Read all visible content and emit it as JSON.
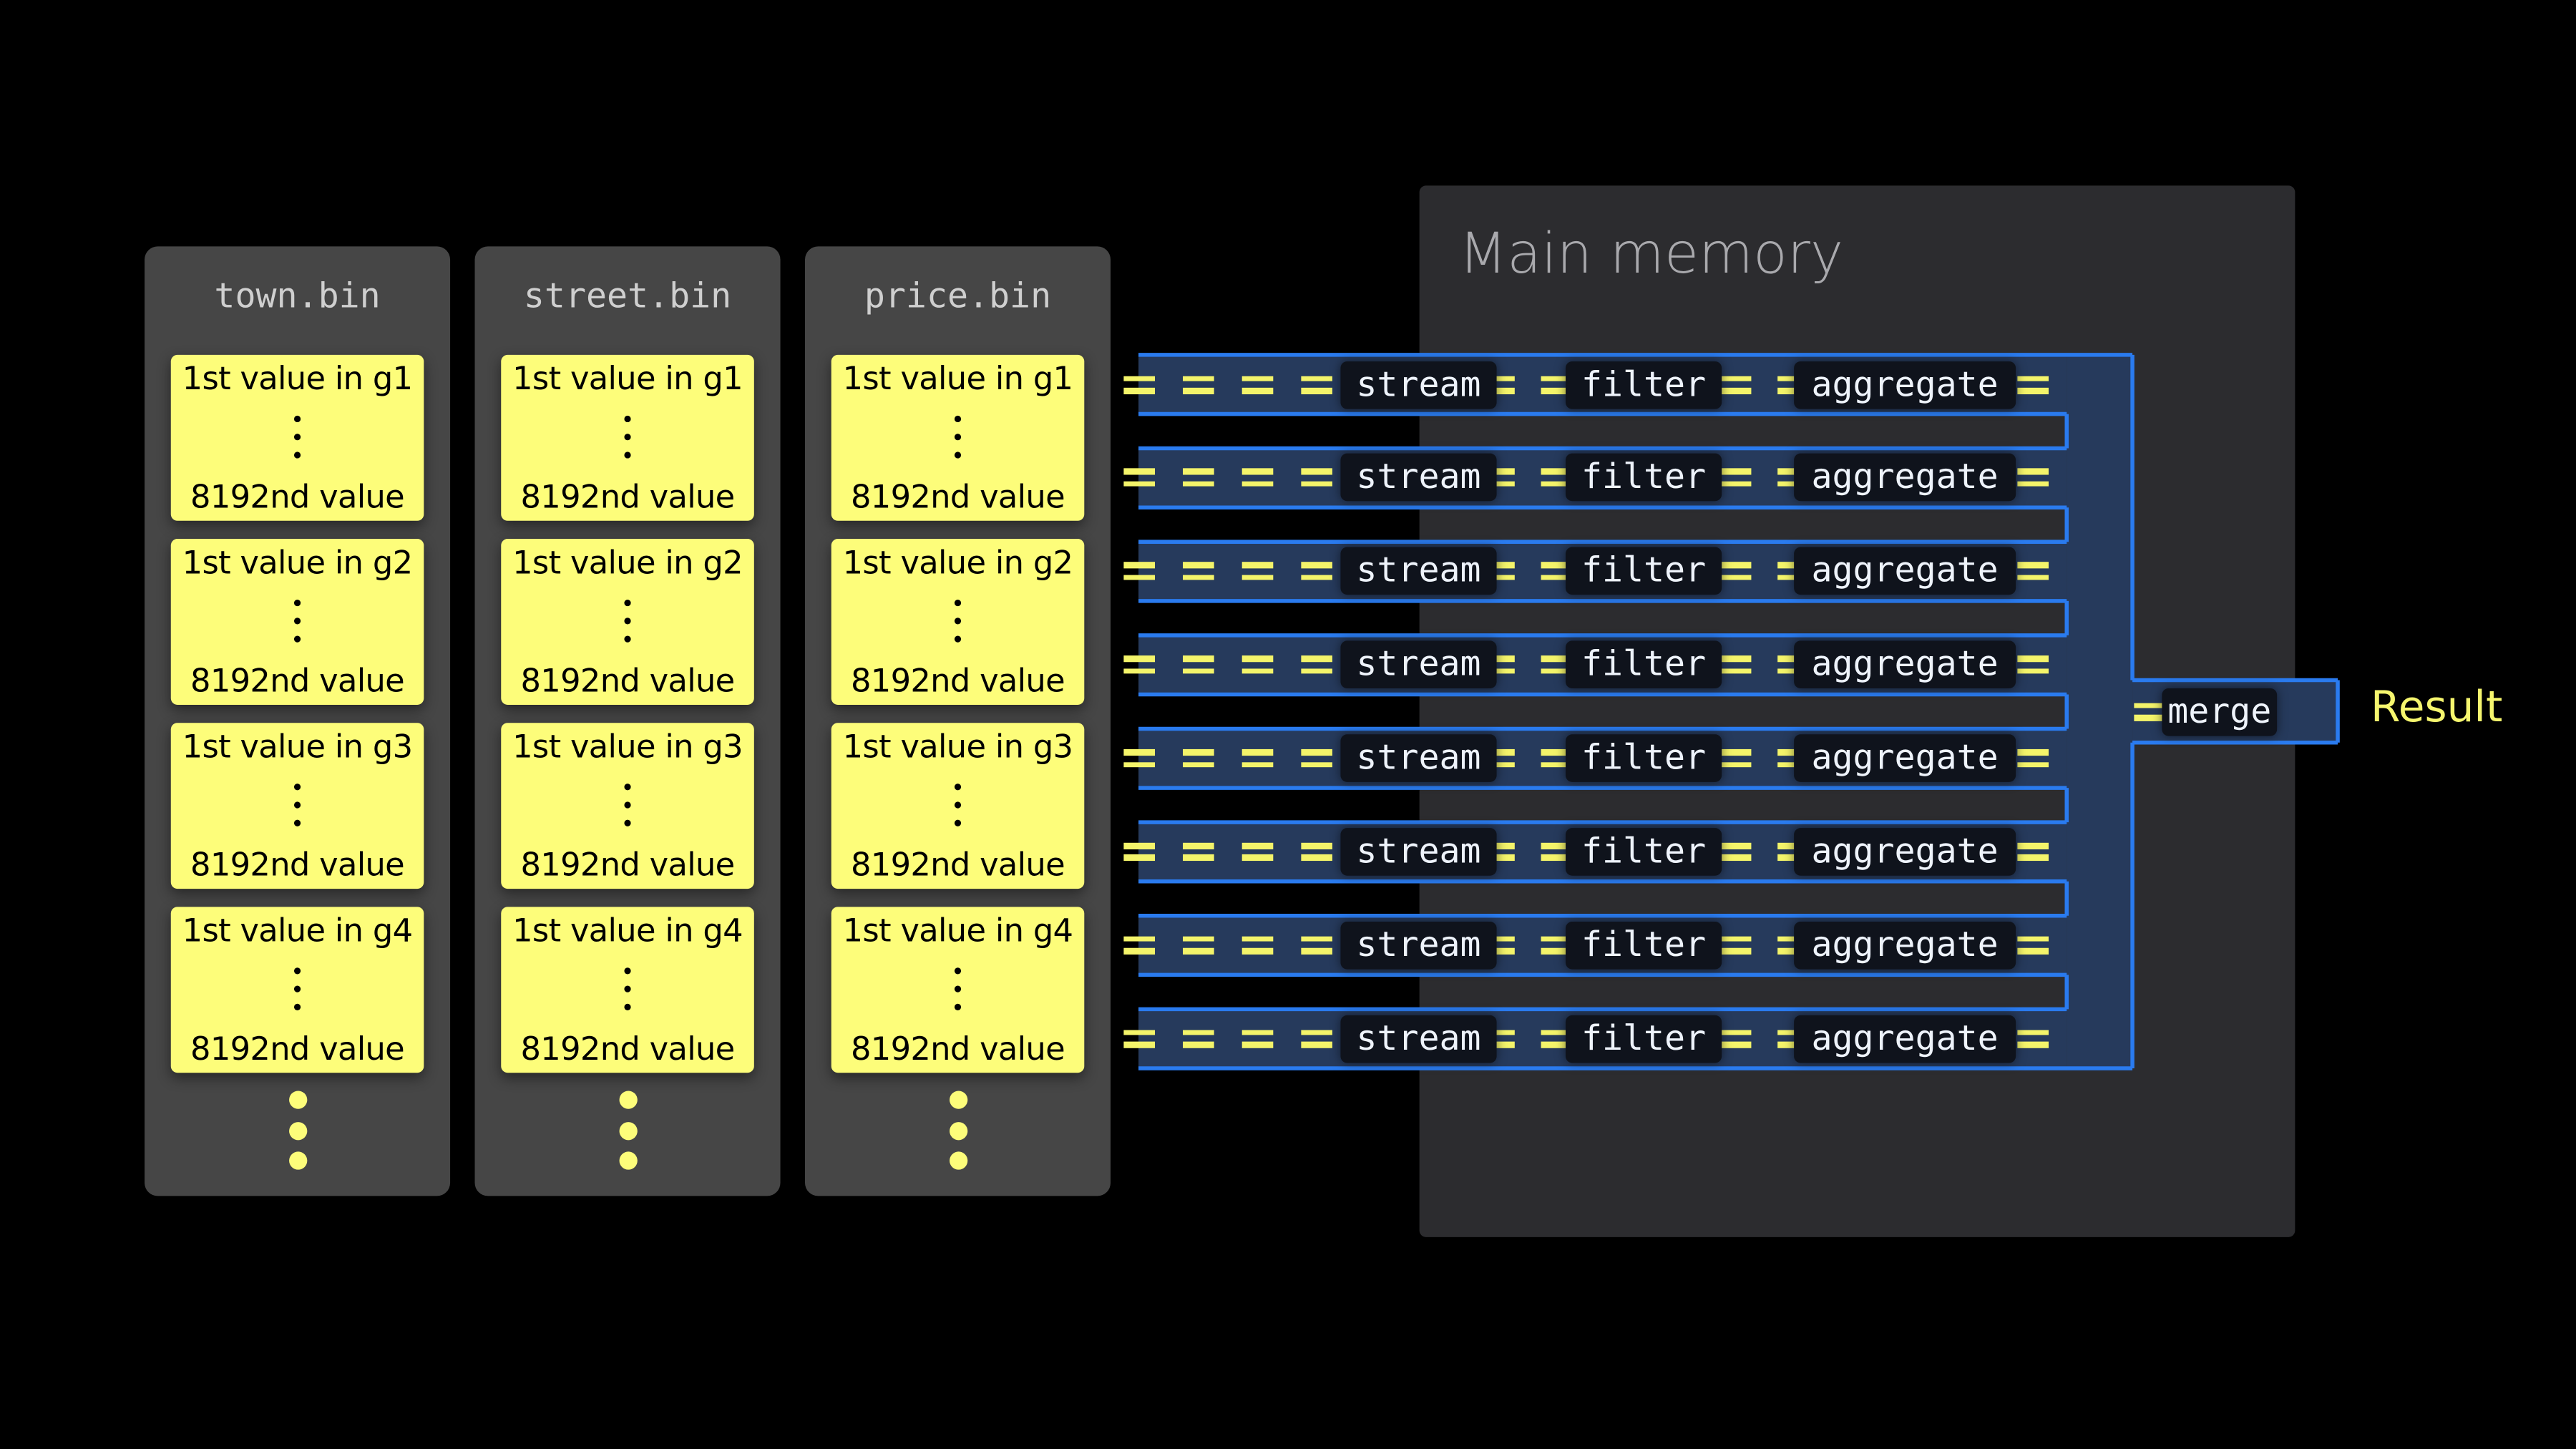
{
  "columns": [
    {
      "title": "town.bin",
      "groups": [
        {
          "first": "1st value in g1",
          "last": "8192nd value"
        },
        {
          "first": "1st value in g2",
          "last": "8192nd value"
        },
        {
          "first": "1st value in g3",
          "last": "8192nd value"
        },
        {
          "first": "1st value in g4",
          "last": "8192nd value"
        }
      ]
    },
    {
      "title": "street.bin",
      "groups": [
        {
          "first": "1st value in g1",
          "last": "8192nd value"
        },
        {
          "first": "1st value in g2",
          "last": "8192nd value"
        },
        {
          "first": "1st value in g3",
          "last": "8192nd value"
        },
        {
          "first": "1st value in g4",
          "last": "8192nd value"
        }
      ]
    },
    {
      "title": "price.bin",
      "groups": [
        {
          "first": "1st value in g1",
          "last": "8192nd value"
        },
        {
          "first": "1st value in g2",
          "last": "8192nd value"
        },
        {
          "first": "1st value in g3",
          "last": "8192nd value"
        },
        {
          "first": "1st value in g4",
          "last": "8192nd value"
        }
      ]
    }
  ],
  "memory": {
    "title": "Main memory"
  },
  "lanes": [
    [
      "stream",
      "filter",
      "aggregate"
    ],
    [
      "stream",
      "filter",
      "aggregate"
    ],
    [
      "stream",
      "filter",
      "aggregate"
    ],
    [
      "stream",
      "filter",
      "aggregate"
    ],
    [
      "stream",
      "filter",
      "aggregate"
    ],
    [
      "stream",
      "filter",
      "aggregate"
    ],
    [
      "stream",
      "filter",
      "aggregate"
    ],
    [
      "stream",
      "filter",
      "aggregate"
    ]
  ],
  "merge": {
    "label": "merge"
  },
  "result": {
    "label": "Result"
  },
  "colors": {
    "highlight": "#fdfd7a",
    "lane_fill": "#263a5c",
    "lane_border": "#2a7bef",
    "panel": "#464646",
    "memory_panel": "#2c2c2f"
  }
}
